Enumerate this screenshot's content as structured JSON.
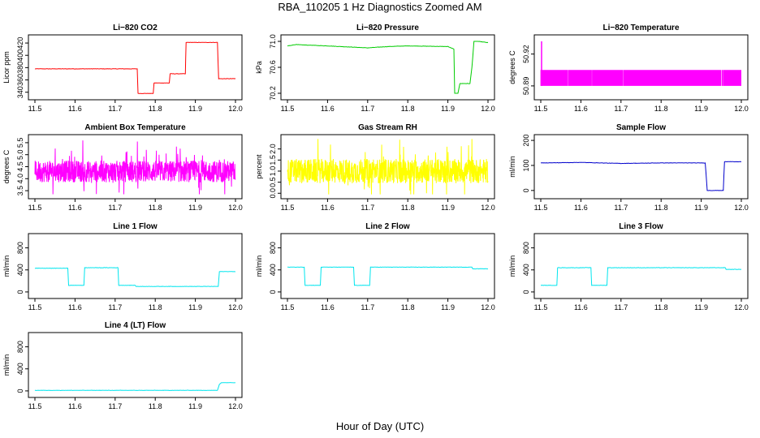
{
  "title": "RBA_110205  1 Hz Diagnostics Zoomed AM",
  "xlabel": "Hour of Day (UTC)",
  "chart_data": [
    {
      "type": "line",
      "title": "Li−820 CO2",
      "ylabel": "Licor ppm",
      "color": "#ff0000",
      "xlim": [
        11.5,
        12.0
      ],
      "x_ticks": [
        "11.5",
        "11.6",
        "11.7",
        "11.8",
        "11.9",
        "12.0"
      ],
      "ylim": [
        333,
        428
      ],
      "y_ticks": [
        340,
        360,
        380,
        400,
        420
      ],
      "series": [
        {
          "x": [
            11.5,
            11.755,
            11.757,
            11.795,
            11.797,
            11.835,
            11.837,
            11.875,
            11.877,
            11.955,
            11.958,
            12.0
          ],
          "values": [
            378,
            378,
            338,
            338,
            355,
            355,
            370,
            370,
            421,
            421,
            362,
            362
          ]
        }
      ]
    },
    {
      "type": "line",
      "title": "Li−820 Pressure",
      "ylabel": "kPa",
      "color": "#00cc00",
      "xlim": [
        11.5,
        12.0
      ],
      "x_ticks": [
        "11.5",
        "11.6",
        "11.7",
        "11.8",
        "11.9",
        "12.0"
      ],
      "ylim": [
        70.15,
        71.05
      ],
      "y_ticks": [
        "70.2",
        "70.6",
        "71.0"
      ],
      "series": [
        {
          "x": [
            11.5,
            11.52,
            11.6,
            11.7,
            11.75,
            11.8,
            11.9,
            11.915,
            11.917,
            11.925,
            11.93,
            11.955,
            11.96,
            11.965,
            11.975,
            12.0
          ],
          "values": [
            70.93,
            70.95,
            70.93,
            70.9,
            70.92,
            70.93,
            70.92,
            70.88,
            70.2,
            70.2,
            70.35,
            70.35,
            70.6,
            71.0,
            71.0,
            70.98
          ]
        }
      ]
    },
    {
      "type": "bar",
      "title": "Li−820 Temperature",
      "ylabel": "degrees C",
      "color": "#ff00ff",
      "xlim": [
        11.5,
        12.0
      ],
      "x_ticks": [
        "11.5",
        "11.6",
        "11.7",
        "11.8",
        "11.9",
        "12.0"
      ],
      "ylim": [
        50.88,
        50.935
      ],
      "y_ticks": [
        "50.89",
        "50.92"
      ],
      "series": [
        {
          "x": [
            11.5,
            12.0
          ],
          "values": [
            50.905,
            50.905
          ]
        }
      ]
    },
    {
      "type": "line",
      "title": "Ambient Box Temperature",
      "ylabel": "degrees C",
      "color": "#ff00ff",
      "xlim": [
        11.5,
        12.0
      ],
      "x_ticks": [
        "11.5",
        "11.6",
        "11.7",
        "11.8",
        "11.9",
        "12.0"
      ],
      "ylim": [
        3.3,
        5.7
      ],
      "y_ticks": [
        "3.5",
        "4.0",
        "4.5",
        "5.0",
        "5.5"
      ],
      "series": [
        {
          "x": [
            11.5,
            12.0
          ],
          "values": [
            4.3,
            4.3
          ]
        }
      ]
    },
    {
      "type": "line",
      "title": "Gas Stream RH",
      "ylabel": "percent",
      "color": "#ffff00",
      "xlim": [
        11.5,
        12.0
      ],
      "x_ticks": [
        "11.5",
        "11.6",
        "11.7",
        "11.8",
        "11.9",
        "12.0"
      ],
      "ylim": [
        -0.1,
        2.5
      ],
      "y_ticks": [
        "0.0",
        "0.5",
        "1.0",
        "1.5",
        "2.0"
      ],
      "series": [
        {
          "x": [
            11.5,
            12.0
          ],
          "values": [
            1.0,
            1.0
          ]
        }
      ]
    },
    {
      "type": "line",
      "title": "Sample Flow",
      "ylabel": "ml/min",
      "color": "#0000cc",
      "xlim": [
        11.5,
        12.0
      ],
      "x_ticks": [
        "11.5",
        "11.6",
        "11.7",
        "11.8",
        "11.9",
        "12.0"
      ],
      "ylim": [
        -20,
        210
      ],
      "y_ticks": [
        0,
        100,
        200
      ],
      "series": [
        {
          "x": [
            11.5,
            11.6,
            11.7,
            11.8,
            11.91,
            11.915,
            11.955,
            11.958,
            12.0
          ],
          "values": [
            110,
            112,
            108,
            110,
            110,
            0,
            0,
            115,
            115
          ]
        }
      ]
    },
    {
      "type": "line",
      "title": "Line 1 Flow",
      "ylabel": "ml/min",
      "color": "#00e5ee",
      "xlim": [
        11.5,
        12.0
      ],
      "x_ticks": [
        "11.5",
        "11.6",
        "11.7",
        "11.8",
        "11.9",
        "12.0"
      ],
      "ylim": [
        -60,
        1000
      ],
      "y_ticks": [
        0,
        400,
        800
      ],
      "series": [
        {
          "x": [
            11.5,
            11.582,
            11.584,
            11.622,
            11.624,
            11.707,
            11.709,
            11.75,
            11.752,
            11.957,
            11.96,
            12.0
          ],
          "values": [
            430,
            430,
            120,
            120,
            440,
            440,
            120,
            120,
            100,
            100,
            370,
            370
          ]
        }
      ]
    },
    {
      "type": "line",
      "title": "Line 2 Flow",
      "ylabel": "ml/min",
      "color": "#00e5ee",
      "xlim": [
        11.5,
        12.0
      ],
      "x_ticks": [
        "11.5",
        "11.6",
        "11.7",
        "11.8",
        "11.9",
        "12.0"
      ],
      "ylim": [
        -60,
        1000
      ],
      "y_ticks": [
        0,
        400,
        800
      ],
      "series": [
        {
          "x": [
            11.5,
            11.542,
            11.544,
            11.582,
            11.584,
            11.665,
            11.667,
            11.705,
            11.707,
            11.96,
            11.962,
            12.0
          ],
          "values": [
            450,
            450,
            120,
            120,
            450,
            450,
            120,
            120,
            450,
            450,
            420,
            420
          ]
        }
      ]
    },
    {
      "type": "line",
      "title": "Line 3 Flow",
      "ylabel": "ml/min",
      "color": "#00e5ee",
      "xlim": [
        11.5,
        12.0
      ],
      "x_ticks": [
        "11.5",
        "11.6",
        "11.7",
        "11.8",
        "11.9",
        "12.0"
      ],
      "ylim": [
        -60,
        1000
      ],
      "y_ticks": [
        0,
        400,
        800
      ],
      "series": [
        {
          "x": [
            11.5,
            11.54,
            11.542,
            11.625,
            11.627,
            11.665,
            11.667,
            11.96,
            11.962,
            12.0
          ],
          "values": [
            120,
            120,
            440,
            440,
            120,
            120,
            440,
            440,
            410,
            410
          ]
        }
      ]
    },
    {
      "type": "line",
      "title": "Line 4 (LT) Flow",
      "ylabel": "ml/min",
      "color": "#00e5ee",
      "xlim": [
        11.5,
        12.0
      ],
      "x_ticks": [
        "11.5",
        "11.6",
        "11.7",
        "11.8",
        "11.9",
        "12.0"
      ],
      "ylim": [
        -60,
        1000
      ],
      "y_ticks": [
        0,
        400,
        800
      ],
      "series": [
        {
          "x": [
            11.5,
            11.955,
            11.96,
            11.965,
            12.0
          ],
          "values": [
            10,
            10,
            120,
            150,
            150
          ]
        }
      ]
    }
  ]
}
